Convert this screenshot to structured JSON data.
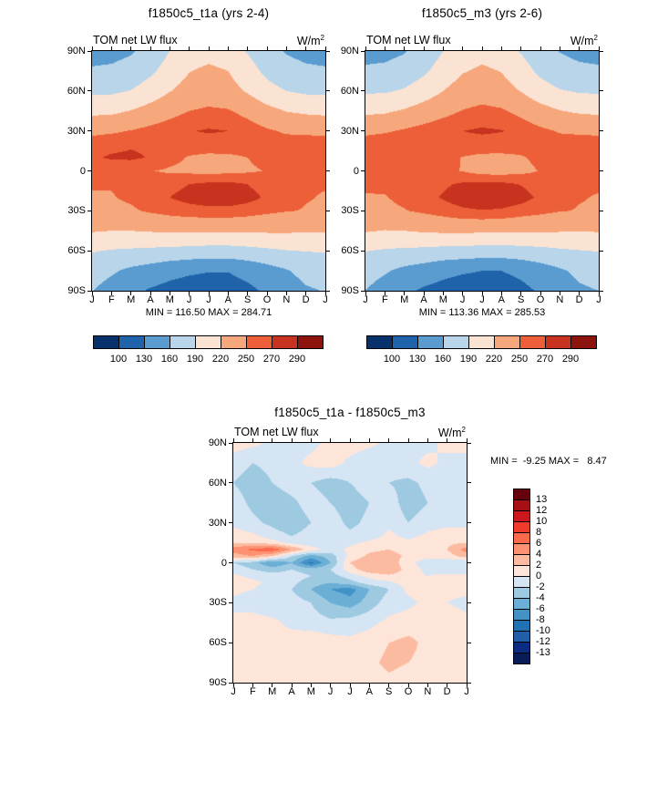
{
  "chart_data": [
    {
      "id": "panel_t1a",
      "type": "heatmap",
      "title": "f1850c5_t1a (yrs 2-4)",
      "field": "TOM net LW flux",
      "units_base": "W/m",
      "units_exp": "2",
      "minmax_label": "MIN = 116.50 MAX = 284.71",
      "min": 116.5,
      "max": 284.71,
      "colorbar": "horizontal",
      "x_ticks": [
        "J",
        "F",
        "M",
        "A",
        "M",
        "J",
        "J",
        "A",
        "S",
        "O",
        "N",
        "D",
        "J"
      ],
      "y_ticks": [
        "90N",
        "60N",
        "30N",
        "0",
        "30S",
        "60S",
        "90S"
      ],
      "lat_grid": [
        90,
        75,
        60,
        45,
        30,
        20,
        10,
        0,
        -10,
        -20,
        -30,
        -45,
        -60,
        -75,
        -90
      ],
      "levels": [
        100,
        130,
        160,
        190,
        220,
        250,
        270,
        290
      ],
      "palette": [
        "#08306b",
        "#1f63aa",
        "#5a9bd0",
        "#b8d5ea",
        "#fbe3d4",
        "#f7a77c",
        "#ec5f38",
        "#c7331e",
        "#8c130e"
      ],
      "values": [
        [
          150,
          151,
          157,
          170,
          190,
          204,
          209,
          204,
          188,
          170,
          158,
          152,
          150
        ],
        [
          163,
          165,
          171,
          184,
          203,
          219,
          226,
          220,
          202,
          183,
          170,
          165,
          163
        ],
        [
          184,
          185,
          191,
          204,
          219,
          231,
          236,
          231,
          217,
          200,
          190,
          185,
          184
        ],
        [
          213,
          214,
          221,
          231,
          241,
          250,
          254,
          252,
          242,
          229,
          219,
          215,
          213
        ],
        [
          243,
          246,
          251,
          257,
          263,
          269,
          272,
          270,
          262,
          253,
          247,
          245,
          243
        ],
        [
          262,
          265,
          268,
          267,
          264,
          262,
          261,
          261,
          259,
          259,
          259,
          261,
          262
        ],
        [
          268,
          272,
          273,
          269,
          257,
          248,
          245,
          246,
          250,
          256,
          262,
          266,
          268
        ],
        [
          254,
          257,
          257,
          251,
          247,
          245,
          243,
          244,
          247,
          251,
          253,
          254,
          254
        ],
        [
          251,
          251,
          253,
          258,
          264,
          270,
          274,
          275,
          270,
          261,
          255,
          251,
          251
        ],
        [
          249,
          249,
          253,
          261,
          270,
          277,
          281,
          282,
          277,
          267,
          257,
          251,
          249
        ],
        [
          247,
          245,
          247,
          253,
          258,
          262,
          264,
          264,
          260,
          255,
          251,
          249,
          247
        ],
        [
          222,
          220,
          220,
          222,
          224,
          224,
          223,
          223,
          224,
          224,
          224,
          222,
          222
        ],
        [
          192,
          188,
          186,
          184,
          182,
          180,
          178,
          178,
          181,
          185,
          189,
          191,
          192
        ],
        [
          172,
          164,
          154,
          147,
          139,
          134,
          131,
          131,
          138,
          148,
          158,
          168,
          172
        ],
        [
          161,
          149,
          137,
          127,
          121,
          117,
          117,
          118,
          124,
          134,
          147,
          157,
          161
        ]
      ]
    },
    {
      "id": "panel_m3",
      "type": "heatmap",
      "title": "f1850c5_m3 (yrs 2-6)",
      "field": "TOM net LW flux",
      "units_base": "W/m",
      "units_exp": "2",
      "minmax_label": "MIN = 113.36 MAX = 285.53",
      "min": 113.36,
      "max": 285.53,
      "colorbar": "horizontal",
      "x_ticks": [
        "J",
        "F",
        "M",
        "A",
        "M",
        "J",
        "J",
        "A",
        "S",
        "O",
        "N",
        "D",
        "J"
      ],
      "y_ticks": [
        "90N",
        "60N",
        "30N",
        "0",
        "30S",
        "60S",
        "90S"
      ],
      "lat_grid": [
        90,
        75,
        60,
        45,
        30,
        20,
        10,
        0,
        -10,
        -20,
        -30,
        -45,
        -60,
        -75,
        -90
      ],
      "levels": [
        100,
        130,
        160,
        190,
        220,
        250,
        270,
        290
      ],
      "palette": [
        "#08306b",
        "#1f63aa",
        "#5a9bd0",
        "#b8d5ea",
        "#fbe3d4",
        "#f7a77c",
        "#ec5f38",
        "#c7331e",
        "#8c130e"
      ],
      "values": [
        [
          151,
          152,
          158,
          171,
          190,
          204,
          210,
          204,
          188,
          171,
          159,
          153,
          151
        ],
        [
          164,
          166,
          172,
          185,
          203,
          218,
          225,
          219,
          202,
          184,
          171,
          166,
          164
        ],
        [
          186,
          187,
          193,
          205,
          220,
          233,
          238,
          232,
          219,
          202,
          192,
          187,
          186
        ],
        [
          214,
          216,
          223,
          233,
          242,
          251,
          256,
          253,
          243,
          231,
          221,
          216,
          214
        ],
        [
          244,
          247,
          253,
          259,
          265,
          270,
          273,
          271,
          263,
          255,
          248,
          246,
          244
        ],
        [
          261,
          264,
          268,
          268,
          265,
          263,
          262,
          261,
          259,
          259,
          259,
          260,
          261
        ],
        [
          263,
          266,
          266,
          265,
          258,
          249,
          245,
          245,
          248,
          255,
          260,
          264,
          263
        ],
        [
          256,
          260,
          263,
          255,
          255,
          249,
          241,
          240,
          244,
          251,
          254,
          256,
          256
        ],
        [
          252,
          253,
          257,
          262,
          267,
          273,
          275,
          275,
          269,
          261,
          255,
          252,
          252
        ],
        [
          249,
          249,
          254,
          263,
          272,
          281,
          285,
          285,
          278,
          266,
          256,
          251,
          249
        ],
        [
          248,
          246,
          249,
          254,
          260,
          266,
          269,
          267,
          261,
          256,
          251,
          249,
          248
        ],
        [
          222,
          219,
          220,
          223,
          225,
          226,
          224,
          224,
          223,
          223,
          222,
          221,
          222
        ],
        [
          191,
          187,
          185,
          183,
          180,
          179,
          177,
          177,
          179,
          182,
          186,
          189,
          191
        ],
        [
          171,
          163,
          153,
          146,
          138,
          133,
          130,
          130,
          136,
          146,
          156,
          166,
          171
        ],
        [
          160,
          148,
          136,
          126,
          120,
          116,
          116,
          117,
          123,
          133,
          146,
          156,
          160
        ]
      ]
    },
    {
      "id": "panel_diff",
      "type": "heatmap",
      "title": "f1850c5_t1a - f1850c5_m3",
      "field": "TOM net LW flux",
      "units_base": "W/m",
      "units_exp": "2",
      "minmax_label": "MIN =  -9.25 MAX =   8.47",
      "min": -9.25,
      "max": 8.47,
      "colorbar": "vertical",
      "x_ticks": [
        "J",
        "F",
        "M",
        "A",
        "M",
        "J",
        "J",
        "A",
        "S",
        "O",
        "N",
        "D",
        "J"
      ],
      "y_ticks": [
        "90N",
        "60N",
        "30N",
        "0",
        "30S",
        "60S",
        "90S"
      ],
      "lat_grid": [
        90,
        75,
        60,
        45,
        30,
        20,
        15,
        10,
        5,
        0,
        -5,
        -10,
        -15,
        -20,
        -30,
        -45,
        -60,
        -75,
        -90
      ],
      "levels": [
        -13,
        -12,
        -10,
        -8,
        -6,
        -4,
        -2,
        0,
        2,
        4,
        6,
        8,
        10,
        12,
        13
      ],
      "palette": [
        "#081d58",
        "#0c2c84",
        "#225ea8",
        "#2171b5",
        "#4292c6",
        "#6baed6",
        "#9ecae1",
        "#d6e5f4",
        "#fee5d9",
        "#fcbba1",
        "#fc9272",
        "#fb6a4a",
        "#ef3b2c",
        "#cb181d",
        "#a50f15",
        "#67000d"
      ],
      "values": [
        [
          1.0,
          0.5,
          -0.5,
          -1.0,
          -0.5,
          0.5,
          1.0,
          0.5,
          -0.5,
          -1.0,
          -0.5,
          0.5,
          1.0
        ],
        [
          -1.0,
          -2.0,
          -1.5,
          -0.5,
          0.5,
          1.0,
          -0.5,
          -1.5,
          -1.0,
          -0.5,
          0.5,
          -0.5,
          -1.0
        ],
        [
          -2.0,
          -3.0,
          -2.0,
          -1.0,
          -2.0,
          -3.0,
          -2.0,
          -1.0,
          -2.0,
          -2.5,
          -1.5,
          -1.0,
          -2.0
        ],
        [
          -1.0,
          -2.5,
          -3.5,
          -2.5,
          -1.0,
          -2.0,
          -3.0,
          -2.0,
          -1.0,
          -3.0,
          -2.0,
          -1.0,
          -1.0
        ],
        [
          -0.5,
          -1.5,
          -2.5,
          -3.5,
          -2.0,
          -1.0,
          -2.5,
          -1.5,
          -0.5,
          -2.0,
          -1.0,
          -0.5,
          -0.5
        ],
        [
          1.0,
          0.5,
          -1.0,
          -2.0,
          -1.0,
          -0.5,
          -1.5,
          -1.0,
          0.5,
          -0.5,
          0.5,
          1.0,
          1.0
        ],
        [
          2.0,
          2.0,
          1.0,
          -0.5,
          -1.5,
          -1.0,
          -0.5,
          0.5,
          1.0,
          0.5,
          1.0,
          1.5,
          2.0
        ],
        [
          5.0,
          6.5,
          7.5,
          4.0,
          1.0,
          -1.0,
          0.5,
          1.5,
          2.0,
          1.0,
          1.5,
          2.0,
          5.0
        ],
        [
          3.0,
          4.0,
          2.0,
          -2.0,
          -5.0,
          -3.0,
          0.5,
          2.5,
          3.0,
          1.5,
          0.5,
          1.0,
          3.0
        ],
        [
          -2.0,
          -3.0,
          -6.0,
          -4.0,
          -8.5,
          -4.0,
          2.0,
          4.0,
          3.5,
          0.5,
          -1.0,
          -1.5,
          -2.0
        ],
        [
          -1.0,
          -2.0,
          -3.0,
          -2.0,
          -3.0,
          -2.0,
          1.0,
          3.5,
          4.0,
          1.0,
          -0.5,
          -1.0,
          -1.0
        ],
        [
          0.5,
          -0.5,
          -1.0,
          -1.0,
          -2.0,
          -3.0,
          -1.0,
          0.5,
          1.5,
          0.5,
          0.0,
          0.5,
          0.5
        ],
        [
          1.0,
          0.5,
          -0.5,
          -1.5,
          -3.0,
          -4.0,
          -3.0,
          -1.0,
          -0.5,
          1.0,
          1.5,
          1.0,
          1.0
        ],
        [
          0.5,
          0.0,
          -1.0,
          -2.0,
          -4.0,
          -6.0,
          -7.0,
          -4.0,
          -2.0,
          0.5,
          1.0,
          0.5,
          0.5
        ],
        [
          -0.5,
          -1.0,
          -1.5,
          -1.0,
          -2.0,
          -4.0,
          -5.0,
          -3.0,
          -1.0,
          -0.5,
          0.5,
          0.0,
          -0.5
        ],
        [
          0.5,
          1.0,
          0.5,
          -0.5,
          -1.0,
          -1.5,
          -1.0,
          -0.5,
          0.5,
          1.0,
          1.5,
          1.0,
          0.5
        ],
        [
          1.5,
          1.0,
          0.5,
          1.0,
          1.5,
          1.0,
          0.5,
          1.0,
          2.0,
          2.5,
          1.5,
          1.0,
          1.5
        ],
        [
          1.0,
          1.5,
          2.0,
          1.5,
          1.0,
          0.5,
          1.0,
          1.5,
          2.5,
          2.0,
          1.5,
          1.0,
          1.0
        ],
        [
          0.5,
          1.0,
          1.5,
          1.0,
          0.5,
          0.0,
          0.5,
          1.0,
          1.5,
          1.0,
          0.5,
          0.5,
          0.5
        ]
      ]
    }
  ]
}
